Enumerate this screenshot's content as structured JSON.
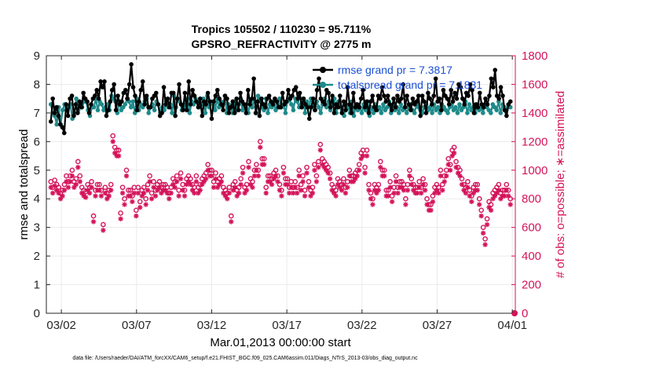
{
  "chart_data": {
    "type": "line",
    "title": "Tropics 105502 / 110230 = 95.711%",
    "subtitle": "GPSRO_REFRACTIVITY @ 2775 m",
    "xlabel": "Mar.01,2013 00:00:00 start",
    "ylabel_left": "rmse and totalspread",
    "ylabel_right": "# of obs: o=possible; ∗=assimilated",
    "footnote": "data file: /Users/raeder/DAI/ATM_forcXX/CAM6_setup/f.e21.FHIST_BGC.f09_025.CAM6assim.011/Diags_NTrS_2013-03/obs_diag_output.nc",
    "x_range_days": [
      0,
      31.2
    ],
    "ylim_left": [
      0,
      9
    ],
    "ylim_right": [
      0,
      1800
    ],
    "x_tick_labels": [
      "03/02",
      "03/07",
      "03/12",
      "03/17",
      "03/22",
      "03/27",
      "04/01"
    ],
    "x_tick_days": [
      1,
      6,
      11,
      16,
      21,
      26,
      31
    ],
    "y_left_ticks": [
      "0",
      "1",
      "2",
      "3",
      "4",
      "5",
      "6",
      "7",
      "8",
      "9"
    ],
    "y_right_ticks": [
      "0",
      "200",
      "400",
      "600",
      "800",
      "1000",
      "1200",
      "1400",
      "1600",
      "1800"
    ],
    "legend": [
      "rmse grand pr = 7.3817",
      "totalspread grand pr = 7.1831"
    ],
    "colors": {
      "rmse": "#000000",
      "spread": "#1f8a8a",
      "obs": "#d4145a",
      "axis_right": "#d4145a"
    },
    "rmse": [
      6.7,
      7.5,
      7.0,
      7.2,
      6.9,
      6.6,
      6.5,
      6.3,
      7.3,
      6.9,
      7.5,
      7.6,
      6.9,
      7.3,
      7.0,
      7.4,
      7.2,
      7.7,
      7.5,
      7.4,
      7.0,
      7.3,
      7.5,
      7.6,
      7.8,
      7.5,
      8.1,
      7.9,
      8.1,
      6.9,
      7.1,
      7.4,
      7.8,
      8.0,
      7.1,
      7.6,
      7.3,
      7.4,
      7.7,
      7.8,
      7.5,
      8.0,
      8.7,
      7.9,
      7.6,
      7.1,
      7.4,
      7.8,
      8.1,
      7.3,
      7.6,
      7.2,
      7.2,
      7.5,
      7.6,
      7.7,
      7.3,
      6.9,
      7.0,
      7.9,
      7.3,
      7.5,
      7.2,
      7.7,
      7.7,
      6.9,
      7.5,
      8.0,
      7.3,
      7.1,
      7.7,
      7.1,
      8.1,
      7.3,
      7.8,
      7.6,
      7.4,
      7.2,
      7.5,
      6.9,
      7.4,
      7.3,
      7.7,
      7.4,
      6.8,
      7.4,
      7.6,
      7.8,
      7.5,
      7.3,
      7.1,
      7.6,
      7.5,
      7.0,
      7.2,
      7.4,
      7.0,
      7.5,
      7.1,
      7.7,
      7.4,
      7.3,
      7.0,
      7.8,
      7.3,
      7.5,
      8.2,
      7.0,
      7.4,
      6.9,
      7.5,
      7.3,
      7.2,
      7.5,
      7.6,
      7.4,
      7.3,
      7.5,
      7.4,
      7.2,
      7.2,
      7.7,
      7.3,
      7.4,
      7.8,
      7.5,
      7.6,
      7.8,
      7.9,
      7.5,
      7.7,
      7.2,
      7.5,
      7.3,
      7.2,
      6.8,
      7.2,
      7.5,
      7.1,
      7.8,
      8.2,
      7.5,
      7.4,
      7.3,
      7.8,
      7.7,
      7.2,
      7.6,
      7.0,
      7.3,
      7.2,
      7.6,
      7.0,
      7.4,
      7.1,
      7.9,
      7.3,
      7.0,
      7.7,
      7.2,
      7.3,
      7.2,
      7.5,
      7.8,
      7.2,
      7.4,
      7.0,
      7.4,
      7.6,
      7.2,
      7.1,
      7.6,
      7.5,
      7.9,
      7.6,
      7.4,
      7.6,
      7.3,
      7.1,
      7.5,
      7.2,
      7.6,
      7.4,
      7.5,
      8.0,
      7.2,
      7.6,
      7.3,
      7.1,
      7.5,
      7.3,
      7.4,
      7.6,
      6.9,
      7.6,
      7.4,
      7.0,
      7.7,
      7.5,
      7.3,
      7.6,
      8.2,
      7.4,
      7.5,
      7.1,
      7.8,
      7.6,
      7.5,
      7.3,
      7.8,
      7.4,
      7.7,
      7.5,
      8.0,
      7.9,
      7.5,
      7.3,
      7.7,
      7.6,
      8.0,
      7.8,
      7.0,
      7.3,
      7.2,
      7.7,
      7.3,
      7.2,
      7.5,
      7.3,
      7.6,
      8.2,
      7.9,
      8.5,
      7.6,
      7.5,
      7.9,
      7.6,
      7.1,
      6.9,
      7.3,
      7.4
    ],
    "spread": [
      7.3,
      7.0,
      6.9,
      6.6,
      7.2,
      6.6,
      7.1,
      7.3,
      7.1,
      7.2,
      7.3,
      6.8,
      7.0,
      7.5,
      7.1,
      7.3,
      7.2,
      7.4,
      7.4,
      7.1,
      6.9,
      7.2,
      7.2,
      7.5,
      7.1,
      7.4,
      7.3,
      7.1,
      7.2,
      7.3,
      7.1,
      7.6,
      7.5,
      7.4,
      7.0,
      7.4,
      7.1,
      7.2,
      7.3,
      7.5,
      7.4,
      7.2,
      7.4,
      7.0,
      7.5,
      7.1,
      7.3,
      7.2,
      7.4,
      7.5,
      7.0,
      7.2,
      7.3,
      7.1,
      7.4,
      7.3,
      7.0,
      7.2,
      7.1,
      7.4,
      7.2,
      7.3,
      7.0,
      7.6,
      7.2,
      7.5,
      7.4,
      7.1,
      7.3,
      7.2,
      7.5,
      7.0,
      7.4,
      7.3,
      7.5,
      7.4,
      7.2,
      7.3,
      7.5,
      7.0,
      7.6,
      7.2,
      7.4,
      7.3,
      7.1,
      7.5,
      7.2,
      7.4,
      7.3,
      7.6,
      7.0,
      7.3,
      7.2,
      7.0,
      7.4,
      7.1,
      7.3,
      7.5,
      7.1,
      7.2,
      7.3,
      7.0,
      7.4,
      7.2,
      7.5,
      7.0,
      7.6,
      7.4,
      7.2,
      7.1,
      7.5,
      7.0,
      7.3,
      7.2,
      7.4,
      7.1,
      7.3,
      7.5,
      7.2,
      7.3,
      7.0,
      7.4,
      7.5,
      7.3,
      7.1,
      7.5,
      7.4,
      7.2,
      7.3,
      7.5,
      7.0,
      7.4,
      7.2,
      7.5,
      7.3,
      7.1,
      7.4,
      7.2,
      7.0,
      7.3,
      7.5,
      7.2,
      7.4,
      7.1,
      7.3,
      7.5,
      7.0,
      7.4,
      7.2,
      7.1,
      6.9,
      7.3,
      7.2,
      7.0,
      7.4,
      6.9,
      7.3,
      7.1,
      7.2,
      7.0,
      7.3,
      7.1,
      7.4,
      6.9,
      7.2,
      7.0,
      7.3,
      7.1,
      7.2,
      7.0,
      7.3,
      7.1,
      7.2,
      7.4,
      7.0,
      7.3,
      7.1,
      7.2,
      7.0,
      7.3,
      7.1,
      7.2,
      7.0,
      7.2,
      7.3,
      7.1,
      7.0,
      7.3,
      7.2,
      7.1,
      7.0,
      7.2,
      7.3,
      7.1,
      7.2,
      7.0,
      7.3,
      7.1,
      7.2,
      7.0,
      7.3,
      7.2,
      7.1,
      7.0,
      7.2,
      7.3,
      7.1,
      7.2,
      7.0,
      7.3,
      7.1,
      7.2,
      7.4,
      7.0,
      7.3,
      7.1,
      7.2,
      7.0,
      7.3,
      7.1,
      7.2,
      7.0,
      7.3,
      7.2,
      7.1,
      7.0,
      7.3,
      7.2,
      7.1,
      7.4,
      7.0,
      7.3,
      7.2,
      7.1,
      7.3,
      7.2
    ],
    "obs_possible": [
      920,
      880,
      930,
      900,
      880,
      840,
      860,
      900,
      960,
      920,
      960,
      1000,
      920,
      940,
      1060,
      960,
      880,
      860,
      850,
      900,
      880,
      920,
      680,
      860,
      900,
      900,
      860,
      620,
      880,
      840,
      860,
      900,
      1240,
      1160,
      1140,
      1140,
      700,
      880,
      800,
      1000,
      860,
      860,
      820,
      880,
      720,
      880,
      780,
      860,
      880,
      800,
      900,
      960,
      840,
      920,
      860,
      900,
      920,
      880,
      900,
      900,
      880,
      840,
      880,
      940,
      920,
      960,
      860,
      980,
      900,
      860,
      940,
      960,
      940,
      900,
      880,
      960,
      880,
      900,
      940,
      960,
      980,
      1040,
      1000,
      1000,
      920,
      980,
      920,
      940,
      960,
      880,
      860,
      840,
      880,
      680,
      900,
      920,
      860,
      880,
      940,
      1020,
      880,
      900,
      1060,
      940,
      920,
      1000,
      1040,
      1000,
      1200,
      1080,
      1080,
      880,
      960,
      960,
      940,
      980,
      1000,
      960,
      900,
      860,
      1020,
      940,
      940,
      880,
      920,
      880,
      920,
      880,
      1000,
      900,
      960,
      860,
      1020,
      920,
      860,
      880,
      1040,
      960,
      1060,
      1180,
      1080,
      1060,
      1040,
      1020,
      980,
      900,
      880,
      860,
      940,
      920,
      900,
      940,
      880,
      920,
      1000,
      960,
      960,
      980,
      1000,
      1040,
      1120,
      1140,
      1020,
      1140,
      900,
      840,
      800,
      900,
      880,
      900,
      1060,
      1000,
      1000,
      860,
      860,
      920,
      820,
      880,
      960,
      880,
      920,
      920,
      900,
      800,
      900,
      1000,
      940,
      900,
      880,
      880,
      920,
      880,
      940,
      900,
      800,
      760,
      760,
      820,
      880,
      900,
      880,
      1000,
      900,
      960,
      1000,
      1080,
      1040,
      1140,
      1160,
      1060,
      1020,
      1000,
      940,
      900,
      880,
      920,
      860,
      820,
      880,
      900,
      900,
      800,
      720,
      600,
      520,
      660,
      780,
      760,
      840,
      860,
      880,
      900,
      840,
      860,
      860,
      900,
      860,
      800
    ],
    "obs_assimilated": [
      880,
      840,
      890,
      860,
      840,
      800,
      820,
      860,
      920,
      880,
      920,
      960,
      880,
      900,
      1020,
      920,
      840,
      820,
      810,
      860,
      840,
      880,
      640,
      820,
      860,
      860,
      820,
      580,
      840,
      800,
      820,
      860,
      1200,
      1120,
      1100,
      1100,
      660,
      840,
      760,
      960,
      820,
      820,
      780,
      840,
      680,
      840,
      740,
      820,
      840,
      760,
      860,
      920,
      800,
      880,
      820,
      860,
      880,
      840,
      860,
      860,
      840,
      800,
      840,
      900,
      880,
      920,
      820,
      940,
      860,
      820,
      900,
      920,
      900,
      860,
      840,
      920,
      840,
      860,
      900,
      920,
      940,
      1000,
      960,
      960,
      880,
      940,
      880,
      900,
      920,
      840,
      820,
      800,
      840,
      640,
      860,
      880,
      820,
      840,
      900,
      980,
      840,
      860,
      1020,
      900,
      880,
      960,
      1000,
      960,
      1160,
      1040,
      1040,
      840,
      920,
      920,
      900,
      940,
      960,
      920,
      860,
      820,
      980,
      900,
      900,
      840,
      880,
      840,
      880,
      840,
      960,
      860,
      920,
      820,
      980,
      880,
      820,
      840,
      1000,
      920,
      1020,
      1140,
      1040,
      1020,
      1000,
      980,
      940,
      860,
      840,
      820,
      900,
      880,
      860,
      900,
      840,
      880,
      960,
      920,
      920,
      940,
      960,
      1000,
      1080,
      1100,
      980,
      1100,
      860,
      800,
      760,
      860,
      840,
      860,
      1020,
      960,
      960,
      820,
      820,
      880,
      780,
      840,
      920,
      840,
      880,
      880,
      860,
      760,
      860,
      960,
      900,
      860,
      840,
      840,
      880,
      840,
      900,
      860,
      760,
      720,
      720,
      780,
      840,
      860,
      840,
      960,
      860,
      920,
      960,
      1040,
      1000,
      1100,
      1120,
      1020,
      980,
      960,
      900,
      860,
      840,
      880,
      820,
      780,
      840,
      860,
      860,
      760,
      680,
      560,
      480,
      620,
      740,
      720,
      800,
      820,
      840,
      860,
      800,
      820,
      820,
      860,
      820,
      760
    ]
  }
}
